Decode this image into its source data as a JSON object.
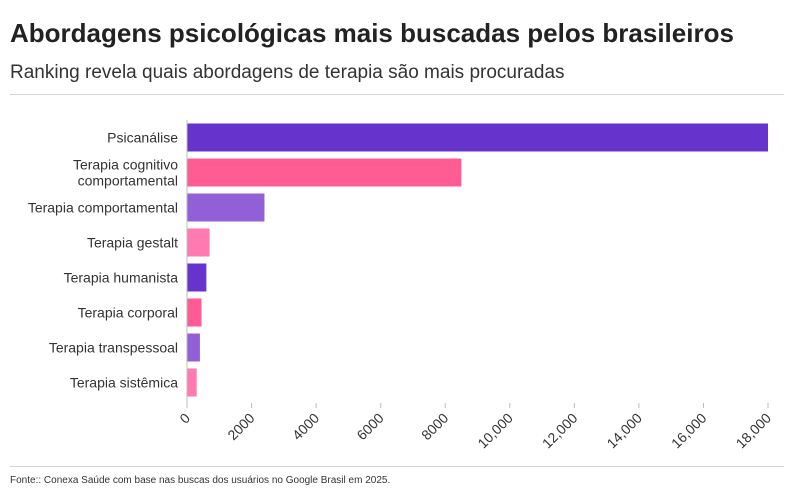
{
  "header": {
    "title": "Abordagens psicológicas mais buscadas pelos brasileiros",
    "subtitle": "Ranking revela quais abordagens de terapia são mais procuradas"
  },
  "footer": {
    "source": "Fonte:: Conexa Saúde com base nas buscas dos usuários no Google Brasil em 2025."
  },
  "chart_data": {
    "type": "bar",
    "orientation": "horizontal",
    "categories": [
      [
        "Psicanálise"
      ],
      [
        "Terapia cognitivo",
        "comportamental"
      ],
      [
        "Terapia comportamental"
      ],
      [
        "Terapia gestalt"
      ],
      [
        "Terapia humanista"
      ],
      [
        "Terapia corporal"
      ],
      [
        "Terapia transpessoal"
      ],
      [
        "Terapia sistêmica"
      ]
    ],
    "values": [
      18000,
      8500,
      2400,
      700,
      600,
      450,
      400,
      300
    ],
    "colors": [
      "#6633cc",
      "#ff5c93",
      "#9160d6",
      "#ff7ab0",
      "#6633cc",
      "#ff5c93",
      "#9160d6",
      "#ff7ab0"
    ],
    "xlim": [
      0,
      18000
    ],
    "xticks": [
      "0",
      "2000",
      "4000",
      "6000",
      "8000",
      "10,000",
      "12,000",
      "14,000",
      "16,000",
      "18,000"
    ],
    "tick_values": [
      0,
      2000,
      4000,
      6000,
      8000,
      10000,
      12000,
      14000,
      16000,
      18000
    ],
    "grid": false,
    "legend": "none"
  }
}
